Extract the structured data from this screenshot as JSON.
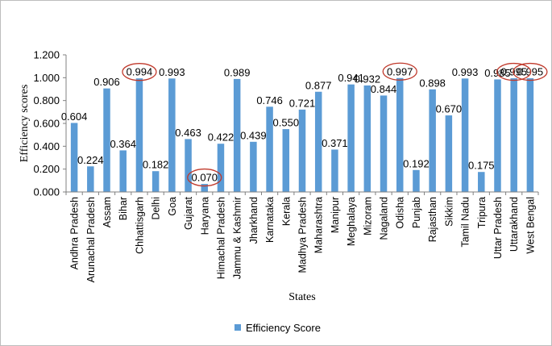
{
  "chart_data": {
    "type": "bar",
    "categories": [
      "Andhra Pradesh",
      "Arunachal Pradesh",
      "Assam",
      "Bihar",
      "Chhattisgarh",
      "Delhi",
      "Goa",
      "Gujarat",
      "Haryana",
      "Himachal Pradesh",
      "Jammu & Kashmir",
      "Jharkhand",
      "Karnataka",
      "Kerala",
      "Madhya Pradesh",
      "Maharashtra",
      "Manipur",
      "Meghalaya",
      "Mizoram",
      "Nagaland",
      "Odisha",
      "Punjab",
      "Rajasthan",
      "Sikkim",
      "Tamil Nadu",
      "Tripura",
      "Uttar Pradesh",
      "Uttarakhand",
      "West Bengal"
    ],
    "series": [
      {
        "name": "Efficiency Score",
        "values": [
          0.604,
          0.224,
          0.906,
          0.364,
          0.994,
          0.182,
          0.993,
          0.463,
          0.07,
          0.422,
          0.989,
          0.439,
          0.746,
          0.55,
          0.721,
          0.877,
          0.371,
          0.941,
          0.932,
          0.844,
          0.997,
          0.192,
          0.898,
          0.67,
          0.993,
          0.175,
          0.985,
          0.995,
          0.995
        ],
        "labels": [
          "0.604",
          "0.224",
          "0.906",
          "0.364",
          "0.994",
          "0.182",
          "0.993",
          "0.463",
          "0.070",
          "0.422",
          "0.989",
          "0.439",
          "0.746",
          "0.550",
          "0.721",
          "0.877",
          "0.371",
          "0.941",
          "0.932",
          "0.844",
          "0.997",
          "0.192",
          "0.898",
          "0.670",
          "0.993",
          "0.175",
          "0.985",
          "0.995",
          "0.995"
        ],
        "color": "#5b9bd5"
      }
    ],
    "highlighted": [
      "Chhattisgarh",
      "Haryana",
      "Odisha",
      "Uttarakhand",
      "West Bengal"
    ],
    "highlight_color": "#c0392b",
    "xlabel": "States",
    "ylabel": "Efficiency scores",
    "ylim": [
      0,
      1.2
    ],
    "yticks": [
      "0.000",
      "0.200",
      "0.400",
      "0.600",
      "0.800",
      "1.000",
      "1.200"
    ],
    "legend": {
      "position": "bottom",
      "label": "Efficiency Score"
    },
    "grid": false
  }
}
